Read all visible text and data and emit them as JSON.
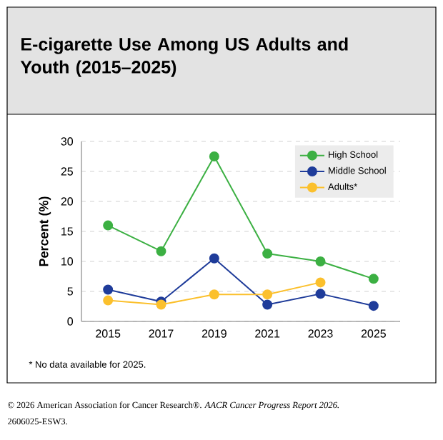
{
  "chart_data": {
    "type": "line",
    "title": "E-cigarette Use Among US Adults and Youth (2015–2025)",
    "ylabel": "Percent (%)",
    "x": [
      2015,
      2017,
      2019,
      2021,
      2023,
      2025
    ],
    "xlim": [
      2014,
      2026
    ],
    "xticks": [
      2015,
      2017,
      2019,
      2021,
      2023,
      2025
    ],
    "ylim": [
      0,
      30
    ],
    "yticks": [
      0,
      5,
      10,
      15,
      20,
      25,
      30
    ],
    "series": [
      {
        "name": "High School",
        "color": "#3cb043",
        "values": [
          16,
          11.7,
          27.5,
          11.3,
          10,
          7.1
        ]
      },
      {
        "name": "Middle School",
        "color": "#1f3c9a",
        "values": [
          5.3,
          3.3,
          10.5,
          2.8,
          4.6,
          2.6
        ]
      },
      {
        "name": "Adults*",
        "color": "#fbc02d",
        "values": [
          3.5,
          2.8,
          4.5,
          4.5,
          6.5,
          null
        ]
      }
    ],
    "grid": "y",
    "legend": "top right",
    "marker": "circle",
    "line_style": "solid",
    "annotations": [
      "* No data available for 2025.",
      "© 2026 American Association for Cancer Research®. *AACR Cancer Progress Report 2026.*",
      "2606025-ESW3."
    ]
  }
}
